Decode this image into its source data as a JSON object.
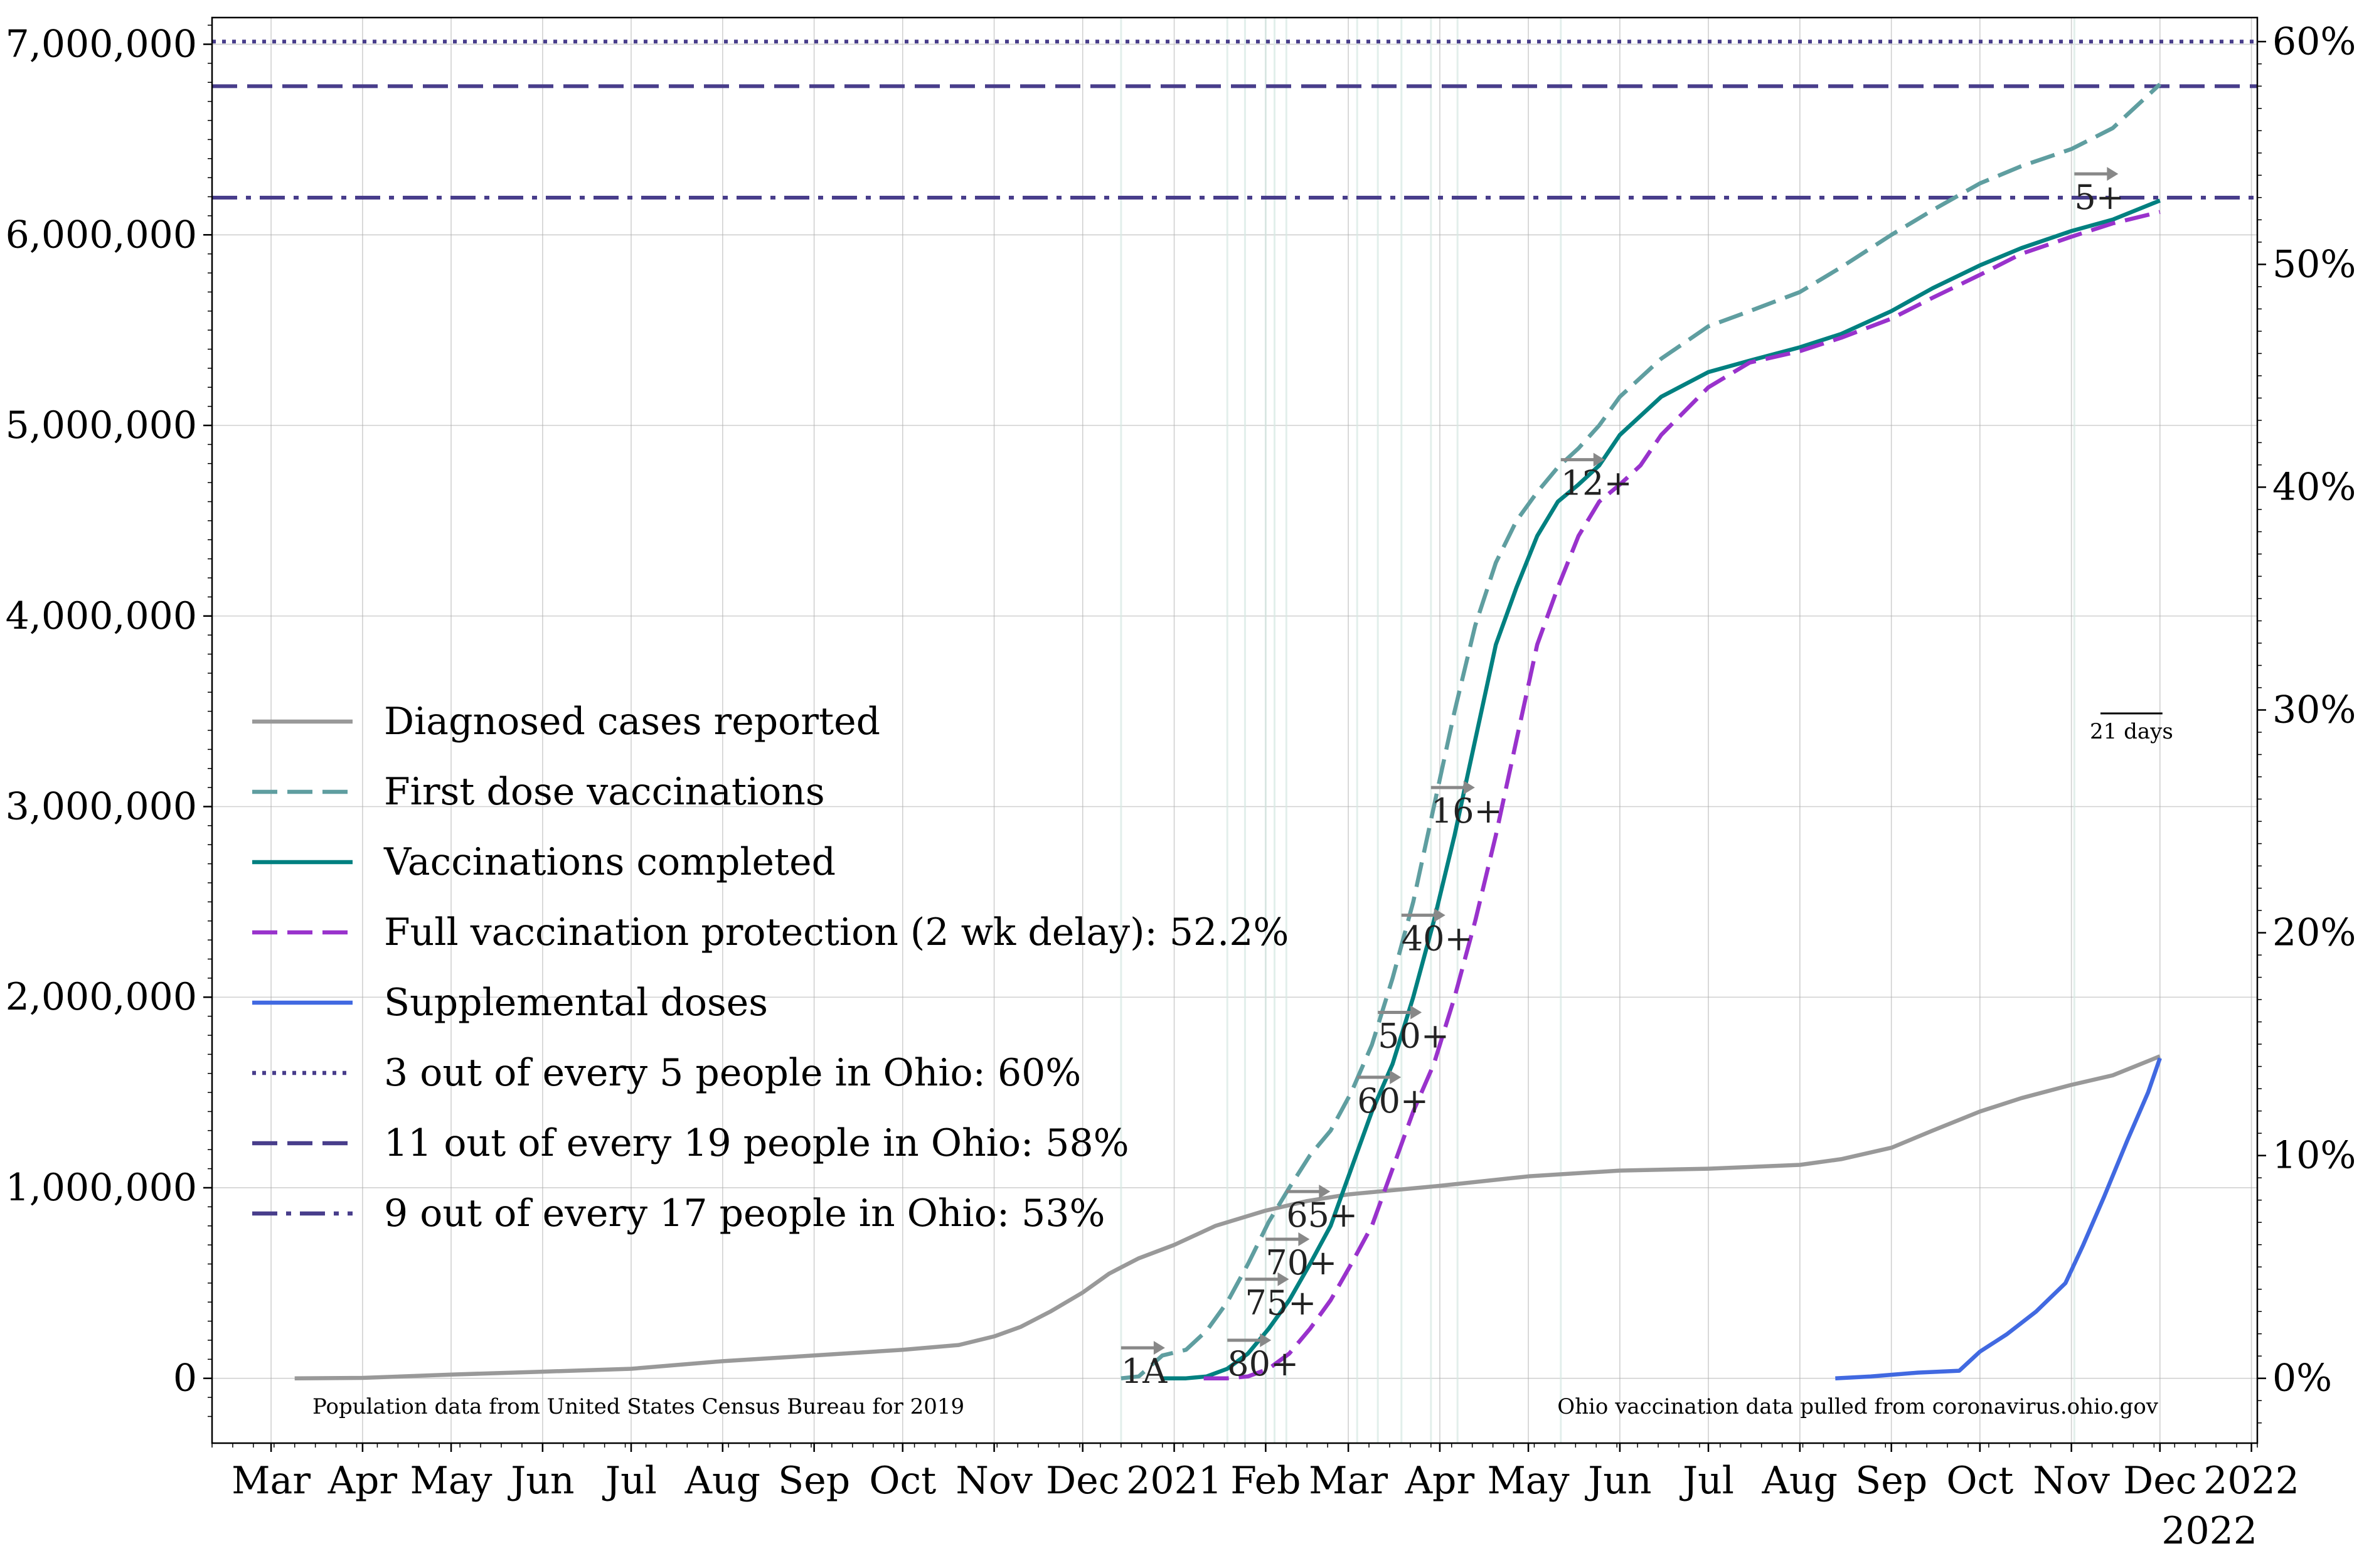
{
  "chart_data": {
    "type": "line",
    "grid": true,
    "legend_position": "center-left",
    "x_axis": {
      "range": [
        "2020-02-10",
        "2022-01-03"
      ],
      "tick_labels": [
        {
          "date": "2020-03-01",
          "label": "Mar"
        },
        {
          "date": "2020-04-01",
          "label": "Apr"
        },
        {
          "date": "2020-05-01",
          "label": "May"
        },
        {
          "date": "2020-06-01",
          "label": "Jun"
        },
        {
          "date": "2020-07-01",
          "label": "Jul"
        },
        {
          "date": "2020-08-01",
          "label": "Aug"
        },
        {
          "date": "2020-09-01",
          "label": "Sep"
        },
        {
          "date": "2020-10-01",
          "label": "Oct"
        },
        {
          "date": "2020-11-01",
          "label": "Nov"
        },
        {
          "date": "2020-12-01",
          "label": "Dec"
        },
        {
          "date": "2021-01-01",
          "label": "2021"
        },
        {
          "date": "2021-02-01",
          "label": "Feb"
        },
        {
          "date": "2021-03-01",
          "label": "Mar"
        },
        {
          "date": "2021-04-01",
          "label": "Apr"
        },
        {
          "date": "2021-05-01",
          "label": "May"
        },
        {
          "date": "2021-06-01",
          "label": "Jun"
        },
        {
          "date": "2021-07-01",
          "label": "Jul"
        },
        {
          "date": "2021-08-01",
          "label": "Aug"
        },
        {
          "date": "2021-09-01",
          "label": "Sep"
        },
        {
          "date": "2021-10-01",
          "label": "Oct"
        },
        {
          "date": "2021-11-01",
          "label": "Nov"
        },
        {
          "date": "2021-12-01",
          "label": "Dec"
        },
        {
          "date": "2022-01-01",
          "label": "2022"
        }
      ],
      "offset_label": "2022"
    },
    "y_axis_left": {
      "range": [
        -340000,
        7140000
      ],
      "tick_values": [
        0,
        1000000,
        2000000,
        3000000,
        4000000,
        5000000,
        6000000,
        7000000
      ],
      "tick_labels": [
        "0",
        "1,000,000",
        "2,000,000",
        "3,000,000",
        "4,000,000",
        "5,000,000",
        "6,000,000",
        "7,000,000"
      ]
    },
    "y_axis_right": {
      "tick_values": [
        0,
        10,
        20,
        30,
        40,
        50,
        60
      ],
      "tick_labels": [
        "0%",
        "10%",
        "20%",
        "30%",
        "40%",
        "50%",
        "60%"
      ],
      "population": 11690000
    },
    "series": [
      {
        "name": "Diagnosed cases reported",
        "color": "#999999",
        "style": "solid",
        "points": [
          [
            "2020-03-09",
            0
          ],
          [
            "2020-04-01",
            2500
          ],
          [
            "2020-05-01",
            20000
          ],
          [
            "2020-06-01",
            35000
          ],
          [
            "2020-07-01",
            50000
          ],
          [
            "2020-08-01",
            90000
          ],
          [
            "2020-09-01",
            120000
          ],
          [
            "2020-10-01",
            150000
          ],
          [
            "2020-10-20",
            175000
          ],
          [
            "2020-11-01",
            220000
          ],
          [
            "2020-11-10",
            270000
          ],
          [
            "2020-11-20",
            350000
          ],
          [
            "2020-12-01",
            450000
          ],
          [
            "2020-12-10",
            550000
          ],
          [
            "2020-12-20",
            630000
          ],
          [
            "2021-01-01",
            700000
          ],
          [
            "2021-01-15",
            800000
          ],
          [
            "2021-02-01",
            880000
          ],
          [
            "2021-02-15",
            930000
          ],
          [
            "2021-03-01",
            965000
          ],
          [
            "2021-04-01",
            1010000
          ],
          [
            "2021-05-01",
            1060000
          ],
          [
            "2021-06-01",
            1090000
          ],
          [
            "2021-07-01",
            1100000
          ],
          [
            "2021-08-01",
            1120000
          ],
          [
            "2021-08-15",
            1150000
          ],
          [
            "2021-09-01",
            1210000
          ],
          [
            "2021-09-15",
            1300000
          ],
          [
            "2021-10-01",
            1400000
          ],
          [
            "2021-10-15",
            1470000
          ],
          [
            "2021-11-01",
            1540000
          ],
          [
            "2021-11-15",
            1590000
          ],
          [
            "2021-12-01",
            1690000
          ]
        ]
      },
      {
        "name": "First dose vaccinations",
        "color": "#5f9ea0",
        "style": "dashed",
        "points": [
          [
            "2020-12-14",
            0
          ],
          [
            "2020-12-20",
            10000
          ],
          [
            "2020-12-28",
            120000
          ],
          [
            "2021-01-05",
            150000
          ],
          [
            "2021-01-12",
            250000
          ],
          [
            "2021-01-19",
            400000
          ],
          [
            "2021-01-26",
            600000
          ],
          [
            "2021-02-02",
            820000
          ],
          [
            "2021-02-09",
            1000000
          ],
          [
            "2021-02-16",
            1170000
          ],
          [
            "2021-02-23",
            1300000
          ],
          [
            "2021-03-02",
            1500000
          ],
          [
            "2021-03-09",
            1750000
          ],
          [
            "2021-03-16",
            2100000
          ],
          [
            "2021-03-23",
            2500000
          ],
          [
            "2021-03-30",
            3000000
          ],
          [
            "2021-04-06",
            3500000
          ],
          [
            "2021-04-13",
            3950000
          ],
          [
            "2021-04-20",
            4280000
          ],
          [
            "2021-04-27",
            4500000
          ],
          [
            "2021-05-04",
            4650000
          ],
          [
            "2021-05-11",
            4780000
          ],
          [
            "2021-05-18",
            4880000
          ],
          [
            "2021-05-25",
            5000000
          ],
          [
            "2021-06-01",
            5150000
          ],
          [
            "2021-06-15",
            5350000
          ],
          [
            "2021-07-01",
            5520000
          ],
          [
            "2021-07-15",
            5600000
          ],
          [
            "2021-08-01",
            5700000
          ],
          [
            "2021-08-15",
            5830000
          ],
          [
            "2021-09-01",
            6000000
          ],
          [
            "2021-09-15",
            6130000
          ],
          [
            "2021-10-01",
            6270000
          ],
          [
            "2021-10-15",
            6360000
          ],
          [
            "2021-11-01",
            6450000
          ],
          [
            "2021-11-15",
            6560000
          ],
          [
            "2021-12-01",
            6790000
          ]
        ]
      },
      {
        "name": "Vaccinations completed",
        "color": "#008080",
        "style": "solid",
        "points": [
          [
            "2020-12-28",
            0
          ],
          [
            "2021-01-05",
            0
          ],
          [
            "2021-01-12",
            10000
          ],
          [
            "2021-01-19",
            50000
          ],
          [
            "2021-01-26",
            130000
          ],
          [
            "2021-02-02",
            260000
          ],
          [
            "2021-02-09",
            410000
          ],
          [
            "2021-02-16",
            600000
          ],
          [
            "2021-02-23",
            800000
          ],
          [
            "2021-03-02",
            1100000
          ],
          [
            "2021-03-09",
            1400000
          ],
          [
            "2021-03-16",
            1650000
          ],
          [
            "2021-03-23",
            2000000
          ],
          [
            "2021-03-30",
            2400000
          ],
          [
            "2021-04-06",
            2850000
          ],
          [
            "2021-04-13",
            3350000
          ],
          [
            "2021-04-20",
            3850000
          ],
          [
            "2021-04-27",
            4150000
          ],
          [
            "2021-05-04",
            4420000
          ],
          [
            "2021-05-11",
            4600000
          ],
          [
            "2021-05-18",
            4690000
          ],
          [
            "2021-05-25",
            4790000
          ],
          [
            "2021-06-01",
            4950000
          ],
          [
            "2021-06-15",
            5150000
          ],
          [
            "2021-07-01",
            5280000
          ],
          [
            "2021-07-15",
            5340000
          ],
          [
            "2021-08-01",
            5410000
          ],
          [
            "2021-08-15",
            5480000
          ],
          [
            "2021-09-01",
            5600000
          ],
          [
            "2021-09-15",
            5720000
          ],
          [
            "2021-10-01",
            5840000
          ],
          [
            "2021-10-15",
            5930000
          ],
          [
            "2021-11-01",
            6020000
          ],
          [
            "2021-11-15",
            6080000
          ],
          [
            "2021-12-01",
            6180000
          ]
        ]
      },
      {
        "name": "Full vaccination protection (2 wk delay): 52.2%",
        "color": "#9932cc",
        "style": "dashed",
        "points": [
          [
            "2021-01-11",
            0
          ],
          [
            "2021-01-19",
            0
          ],
          [
            "2021-01-26",
            10000
          ],
          [
            "2021-02-02",
            50000
          ],
          [
            "2021-02-09",
            130000
          ],
          [
            "2021-02-16",
            260000
          ],
          [
            "2021-02-23",
            410000
          ],
          [
            "2021-03-02",
            600000
          ],
          [
            "2021-03-09",
            800000
          ],
          [
            "2021-03-16",
            1100000
          ],
          [
            "2021-03-23",
            1400000
          ],
          [
            "2021-03-30",
            1650000
          ],
          [
            "2021-04-06",
            2000000
          ],
          [
            "2021-04-13",
            2400000
          ],
          [
            "2021-04-20",
            2850000
          ],
          [
            "2021-04-27",
            3350000
          ],
          [
            "2021-05-04",
            3850000
          ],
          [
            "2021-05-11",
            4150000
          ],
          [
            "2021-05-18",
            4420000
          ],
          [
            "2021-05-25",
            4600000
          ],
          [
            "2021-06-01",
            4690000
          ],
          [
            "2021-06-08",
            4790000
          ],
          [
            "2021-06-15",
            4950000
          ],
          [
            "2021-07-01",
            5200000
          ],
          [
            "2021-07-15",
            5330000
          ],
          [
            "2021-08-01",
            5390000
          ],
          [
            "2021-08-15",
            5460000
          ],
          [
            "2021-09-01",
            5560000
          ],
          [
            "2021-09-15",
            5670000
          ],
          [
            "2021-10-01",
            5790000
          ],
          [
            "2021-10-15",
            5900000
          ],
          [
            "2021-11-01",
            5990000
          ],
          [
            "2021-11-15",
            6060000
          ],
          [
            "2021-12-01",
            6120000
          ]
        ]
      },
      {
        "name": "Supplemental doses",
        "color": "#4169e1",
        "style": "solid",
        "points": [
          [
            "2021-08-13",
            0
          ],
          [
            "2021-08-25",
            10000
          ],
          [
            "2021-09-10",
            30000
          ],
          [
            "2021-09-24",
            40000
          ],
          [
            "2021-10-01",
            140000
          ],
          [
            "2021-10-10",
            230000
          ],
          [
            "2021-10-20",
            350000
          ],
          [
            "2021-10-30",
            500000
          ],
          [
            "2021-11-05",
            700000
          ],
          [
            "2021-11-12",
            950000
          ],
          [
            "2021-11-20",
            1250000
          ],
          [
            "2021-11-27",
            1500000
          ],
          [
            "2021-12-01",
            1680000
          ]
        ]
      }
    ],
    "reference_lines": [
      {
        "name": "3 out of every 5 people in Ohio: 60%",
        "value": 7014000,
        "style": "dotted",
        "color": "#483d8b"
      },
      {
        "name": "11 out of every 19 people in Ohio: 58%",
        "value": 6780000,
        "style": "dashed",
        "color": "#483d8b"
      },
      {
        "name": "9 out of every 17 people in Ohio: 53%",
        "value": 6195000,
        "style": "dashdot",
        "color": "#483d8b"
      }
    ],
    "vertical_lines": [
      "2020-12-14",
      "2021-01-19",
      "2021-01-25",
      "2021-02-01",
      "2021-02-04",
      "2021-02-08",
      "2021-03-04",
      "2021-03-11",
      "2021-03-19",
      "2021-03-29",
      "2021-04-07",
      "2021-05-12",
      "2021-11-02"
    ],
    "vertical_line_color": "#d5e8e2",
    "phase_annotations": [
      {
        "label": "1A",
        "date": "2020-12-14",
        "y": 160000
      },
      {
        "label": "80+",
        "date": "2021-01-19",
        "y": 200000
      },
      {
        "label": "75+",
        "date": "2021-01-25",
        "y": 520000
      },
      {
        "label": "70+",
        "date": "2021-02-01",
        "y": 730000
      },
      {
        "label": "65+",
        "date": "2021-02-08",
        "y": 980000
      },
      {
        "label": "60+",
        "date": "2021-03-04",
        "y": 1580000
      },
      {
        "label": "50+",
        "date": "2021-03-11",
        "y": 1920000
      },
      {
        "label": "40+",
        "date": "2021-03-19",
        "y": 2430000
      },
      {
        "label": "16+",
        "date": "2021-03-29",
        "y": 3100000
      },
      {
        "label": "12+",
        "date": "2021-05-12",
        "y": 4820000
      },
      {
        "label": "5+",
        "date": "2021-11-02",
        "y": 6320000
      }
    ],
    "scale_bar": {
      "label": "21 days",
      "days": 21
    },
    "source_left": "Population data from United States Census Bureau for 2019",
    "source_right": "Ohio vaccination data pulled from coronavirus.ohio.gov"
  },
  "legend": [
    {
      "label": "Diagnosed cases reported",
      "color": "#999999",
      "style": "solid"
    },
    {
      "label": "First dose vaccinations",
      "color": "#5f9ea0",
      "style": "dashed"
    },
    {
      "label": "Vaccinations completed",
      "color": "#008080",
      "style": "solid"
    },
    {
      "label": "Full vaccination protection (2 wk delay): 52.2%",
      "color": "#9932cc",
      "style": "dashed"
    },
    {
      "label": "Supplemental doses",
      "color": "#4169e1",
      "style": "solid"
    },
    {
      "label": "3 out of every 5 people in Ohio: 60%",
      "color": "#483d8b",
      "style": "dotted"
    },
    {
      "label": "11 out of every 19 people in Ohio: 58%",
      "color": "#483d8b",
      "style": "dashed"
    },
    {
      "label": "9 out of every 17 people in Ohio: 53%",
      "color": "#483d8b",
      "style": "dashdot"
    }
  ]
}
